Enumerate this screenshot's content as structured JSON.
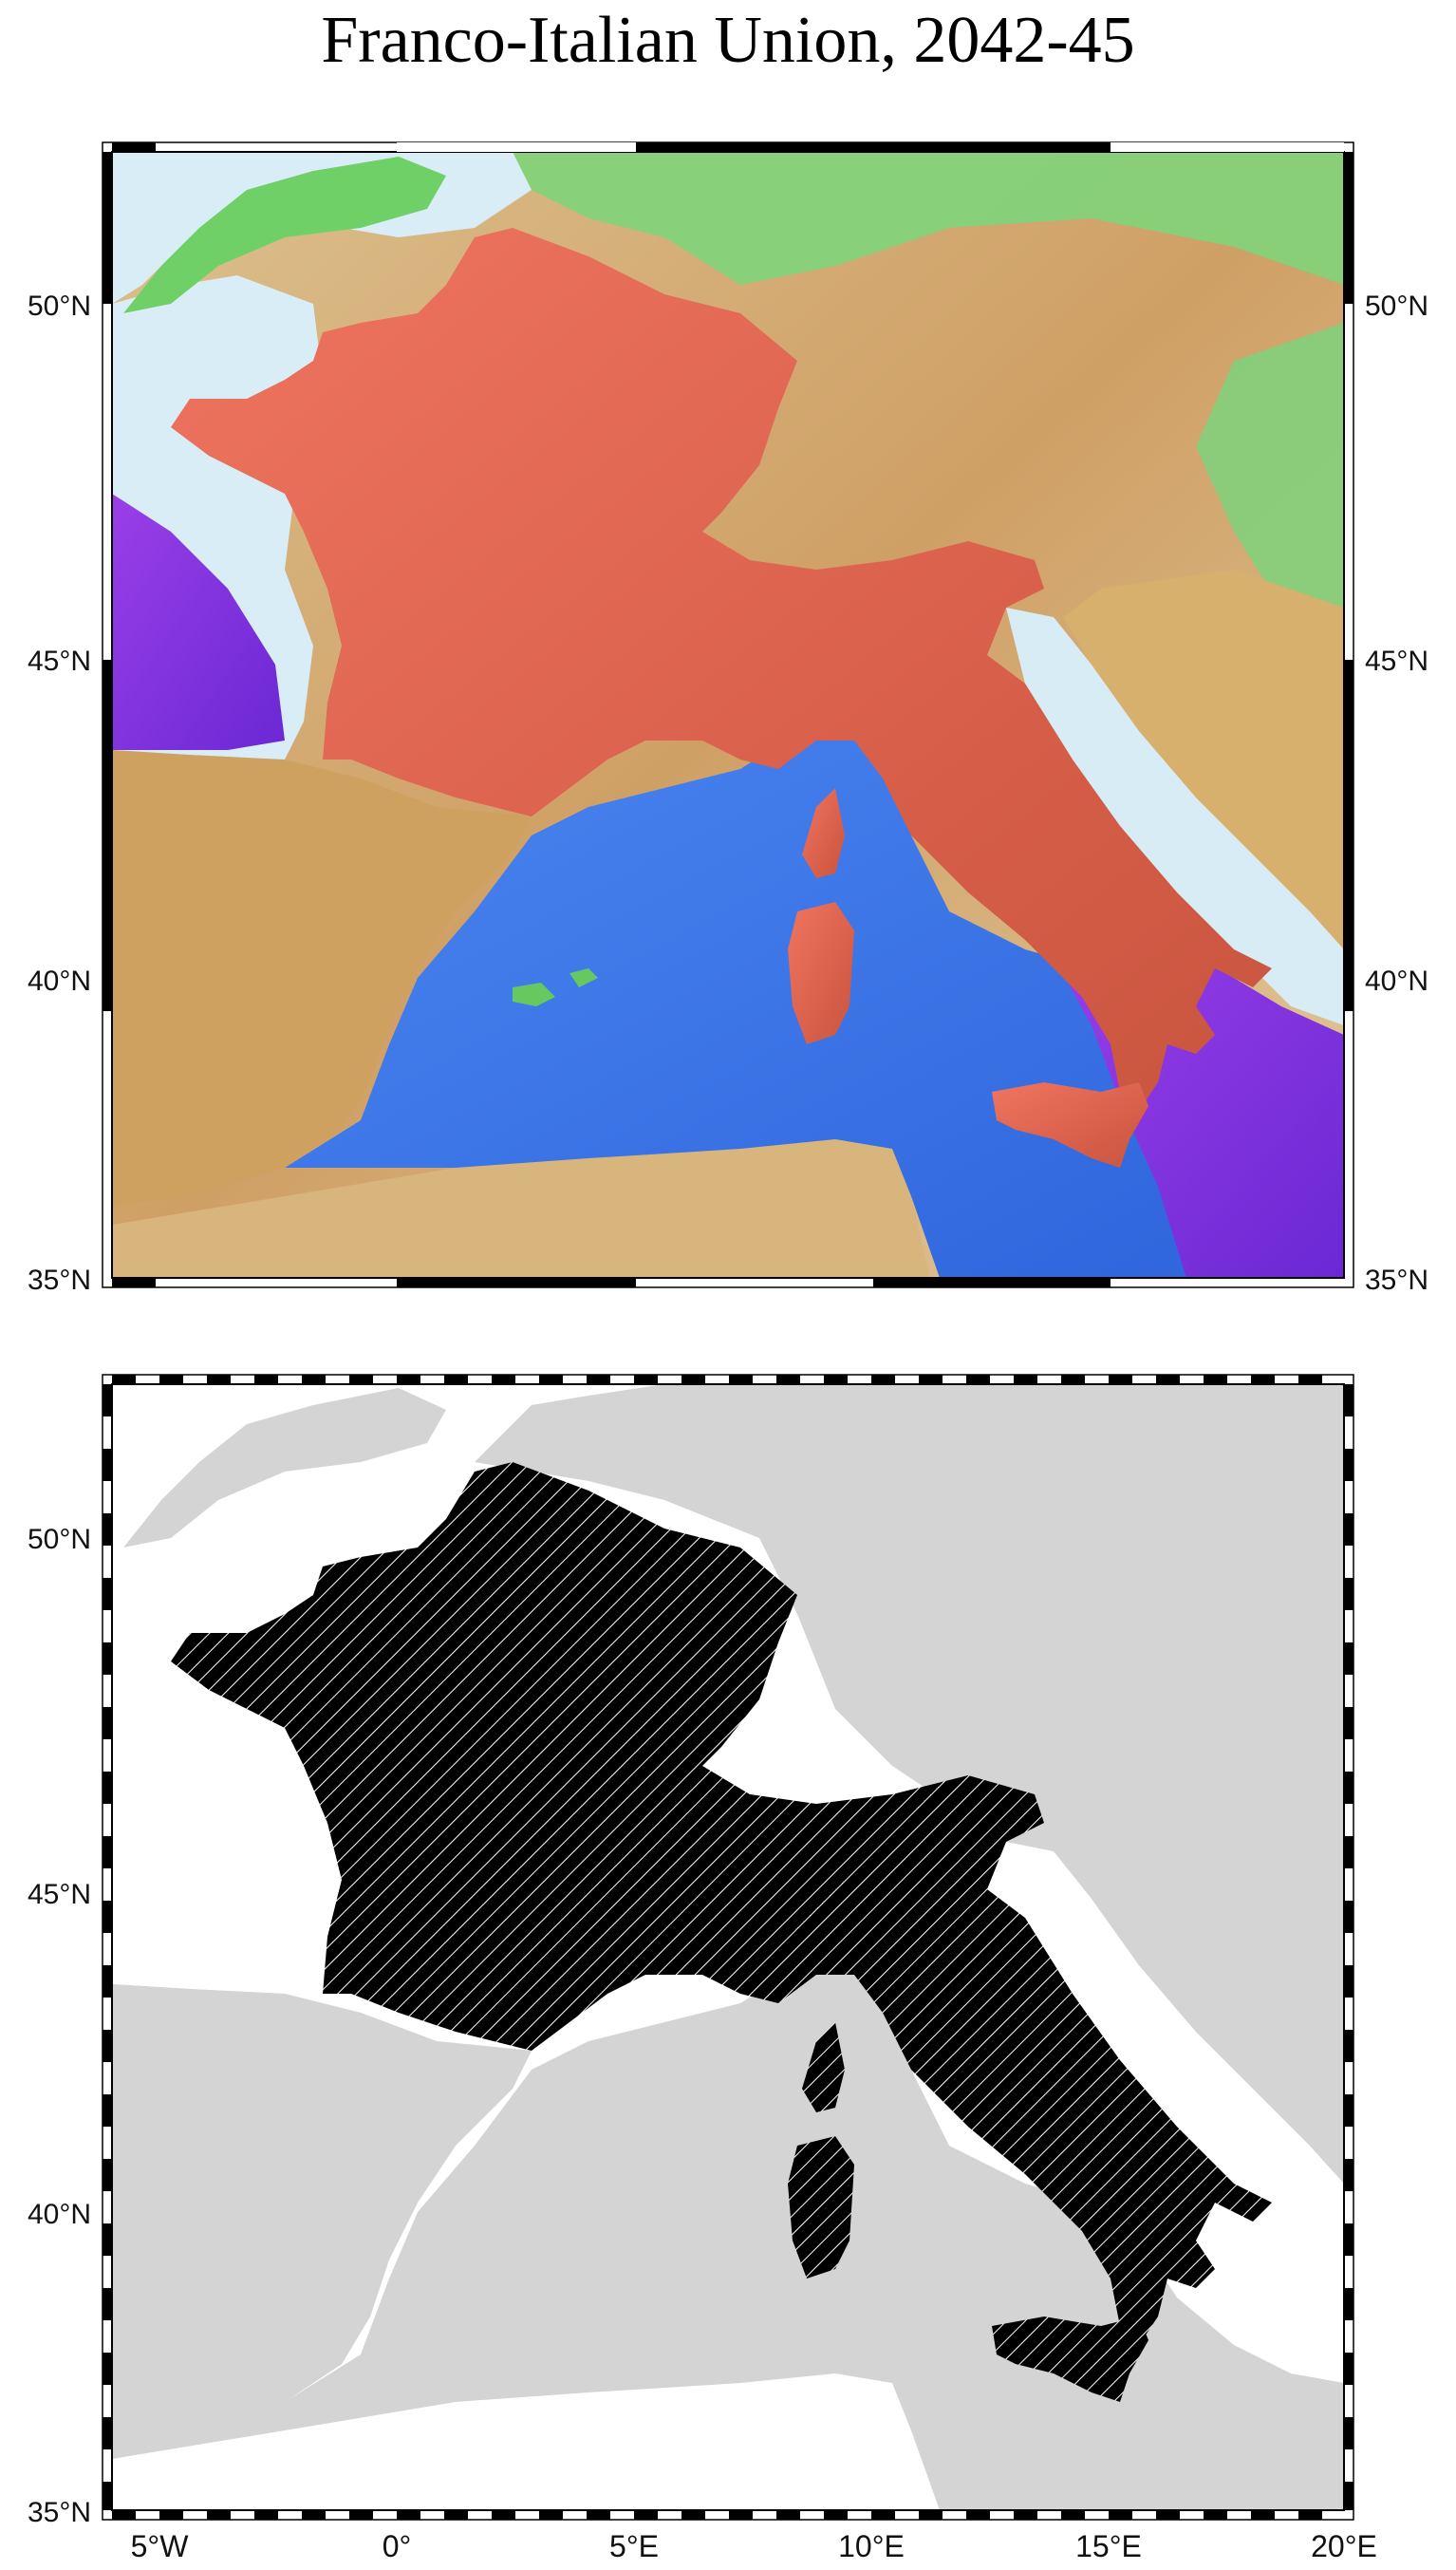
{
  "title": "Franco-Italian Union, 2042-45",
  "maps": [
    {
      "name": "relief-map",
      "description_of_style": "shaded relief with highlighted union territory"
    },
    {
      "name": "hatched-map",
      "description_of_style": "grey land, white sea, hatched union territory"
    }
  ],
  "latitude_labels": [
    "35°N",
    "40°N",
    "45°N",
    "50°N"
  ],
  "longitude_labels": [
    "5°W",
    "0°",
    "5°E",
    "10°E",
    "15°E",
    "20°E"
  ],
  "colors": {
    "union_relief": "#e86a57",
    "union_hatch_fill": "#000000",
    "land_grey": "#d4d4d4",
    "sea_white": "#ffffff",
    "deep_sea": "#3c73e6",
    "shallow_sea": "#dbeef8",
    "low_land": "#6dd36a",
    "high_land": "#d7b27a",
    "very_deep": "#8a2be2"
  }
}
